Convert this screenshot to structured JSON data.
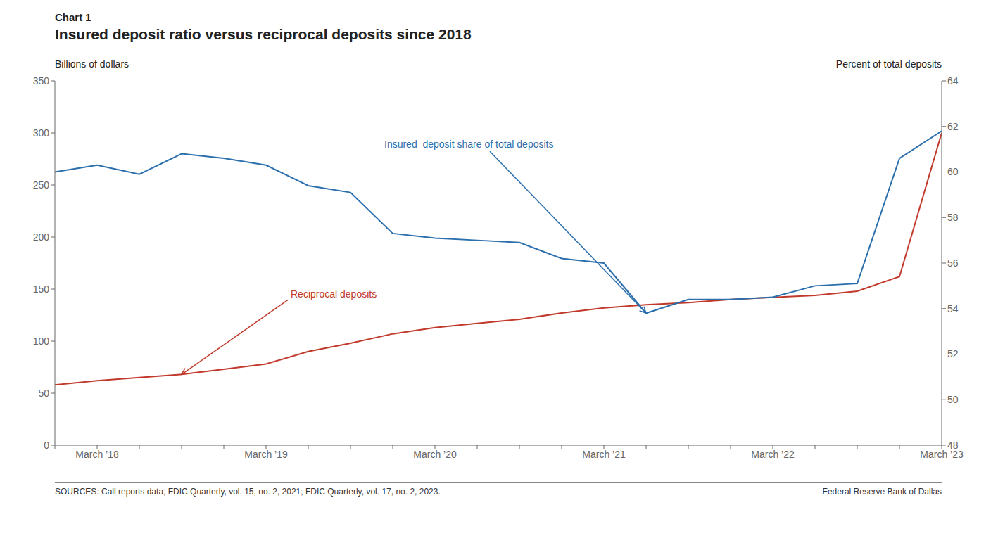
{
  "chart_data": {
    "type": "line",
    "chart_label": "Chart 1",
    "title": "Insured deposit ratio versus reciprocal deposits since 2018",
    "y_label": "Billions of dollars",
    "y2_label": "Percent of total deposits",
    "sources": "SOURCES: Call reports data; FDIC Quarterly, vol. 15, no. 2, 2021; FDIC Quarterly, vol. 17, no. 2, 2023.",
    "attribution": "Federal Reserve Bank of Dallas",
    "categories": [
      null,
      "March ’18",
      null,
      null,
      null,
      "March ’19",
      null,
      null,
      null,
      "March ’20",
      null,
      null,
      null,
      "March ’21",
      null,
      null,
      null,
      "March ’22",
      null,
      null,
      null,
      "March ’23"
    ],
    "series": [
      {
        "name": "Reciprocal deposits",
        "color": "#c0392b",
        "values": [
          58,
          62,
          65,
          68,
          73,
          78,
          90,
          98,
          107,
          113,
          117,
          121,
          127,
          132,
          135,
          137,
          140,
          142,
          144,
          148,
          162,
          300
        ]
      },
      {
        "name": "Insured  deposit share of total deposits",
        "color": "#2c6fad",
        "axis": "y2",
        "values": [
          60.0,
          60.3,
          59.9,
          60.8,
          60.6,
          60.3,
          59.4,
          59.1,
          57.3,
          57.1,
          57.0,
          56.9,
          56.2,
          56.0,
          53.8,
          54.4,
          54.4,
          54.5,
          55.0,
          55.1,
          60.6,
          61.8
        ]
      }
    ],
    "annotations": [
      "Reciprocal deposits",
      "Insured  deposit share of total deposits"
    ],
    "ylim": [
      0,
      350
    ],
    "yticks": [
      0,
      50,
      100,
      150,
      200,
      250,
      300,
      350
    ],
    "y2lim": [
      48,
      64
    ],
    "y2ticks": [
      48,
      50,
      52,
      54,
      56,
      58,
      60,
      62,
      64
    ],
    "grid": false
  }
}
